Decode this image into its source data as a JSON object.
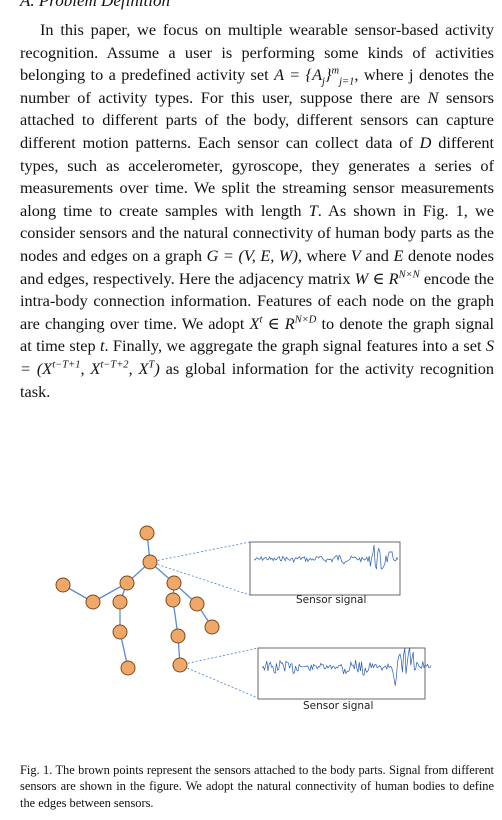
{
  "section": {
    "heading": "A. Problem Definition"
  },
  "paragraph": {
    "t1": "In this paper, we focus on multiple wearable sensor-based activity recognition. Assume a user is performing some kinds of activities belonging to a predefined activity set ",
    "m1": "A = {A",
    "m1_sub": "j",
    "m1_close": "}",
    "m1_sup": "m",
    "m1_sub2": "j=1",
    "t2": ", where j denotes the number of activity types. For this user, suppose there are ",
    "m2": "N",
    "t3": " sensors attached to different parts of the body, different sensors can capture different motion patterns. Each sensor can collect data of ",
    "m3": "D",
    "t4": " different types, such as accelerometer, gyroscope, they generates a series of measurements over time. We split the streaming sensor measurements along time to create samples with length ",
    "m4": "T",
    "t5": ". As shown in Fig. 1, we consider sensors and the natural connectivity of human body parts as the nodes and edges on a graph ",
    "m5": "G = (V, E, W)",
    "t6": ", where ",
    "m6": "V",
    "t7": " and ",
    "m7": "E",
    "t8": " denote nodes and edges, respectively. Here the adjacency matrix ",
    "m8": "W ∈ R",
    "m8_sup": "N×N",
    "t9": " encode the intra-body connection information. Features of each node on the graph are changing over time. We adopt ",
    "m9": "X",
    "m9_sup": "t",
    "m9b": " ∈ R",
    "m9b_sup": "N×D",
    "t10": " to denote the graph signal at time step ",
    "m10": "t",
    "t11": ". Finally, we aggregate the graph signal features into a set ",
    "m11": "S = (X",
    "m11_sup1": "t−T+1",
    "m11b": ", X",
    "m11_sup2": "t−T+2",
    "m11c": ", X",
    "m11_sup3": "T",
    "m11d": ")",
    "t12": " as global information for the activity recognition task."
  },
  "figure": {
    "signal_label_1": "Sensor signal",
    "signal_label_2": "Sensor signal",
    "node_color": "#f0a868",
    "node_stroke": "#7a4a1c",
    "edge_color": "#5b8bd6",
    "signal_color": "#2a5bb5"
  },
  "caption": {
    "text": "Fig. 1.  The brown points represent the sensors attached to the body parts. Signal from different sensors are shown in the figure. We adopt the natural connectivity of human bodies to define the edges between sensors."
  }
}
